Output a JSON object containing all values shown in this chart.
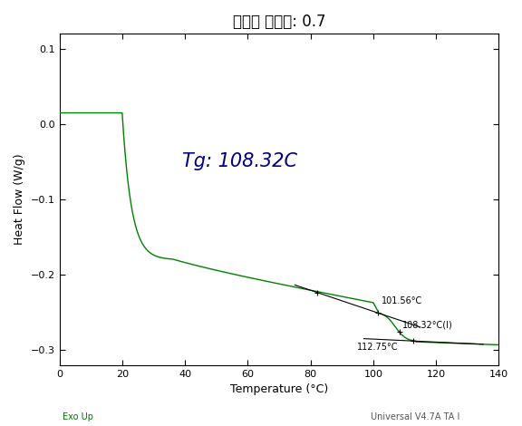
{
  "title": "경화제 당량비: 0.7",
  "xlabel": "Temperature (°C)",
  "ylabel": "Heat Flow (W/g)",
  "xlim": [
    0,
    140
  ],
  "ylim": [
    -0.32,
    0.12
  ],
  "yticks": [
    0.1,
    0.0,
    -0.1,
    -0.2,
    -0.3
  ],
  "xticks": [
    0,
    20,
    40,
    60,
    80,
    100,
    120,
    140
  ],
  "tg_text": "Tg: 108.32C",
  "annotation_101": "101.56°C",
  "annotation_108": "108.32°C(I)",
  "annotation_112": "112.75°C",
  "bottom_left": "Exo Up",
  "bottom_right": "Universal V4.7A TA I",
  "line_color": "#008000",
  "tangent_color": "#000000",
  "background": "#ffffff",
  "plot_bg": "#ffffff",
  "tg_color": "#000080"
}
